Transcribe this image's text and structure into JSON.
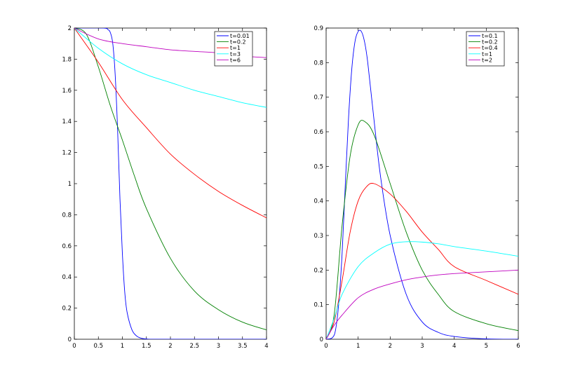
{
  "chart_data": [
    {
      "type": "line",
      "xlim": [
        0,
        4
      ],
      "ylim": [
        0,
        2
      ],
      "x_ticks": [
        "0",
        "0.5",
        "1",
        "1.5",
        "2",
        "2.5",
        "3",
        "3.5",
        "4"
      ],
      "y_ticks": [
        "0",
        "0.2",
        "0.4",
        "0.6",
        "0.8",
        "1",
        "1.2",
        "1.4",
        "1.6",
        "1.8",
        "2"
      ],
      "legend_position": "top-right",
      "series": [
        {
          "name": "t=0.01",
          "color": "#0000ff",
          "x": [
            0,
            0.6,
            0.7,
            0.75,
            0.8,
            0.85,
            0.9,
            0.95,
            1.0,
            1.05,
            1.1,
            1.2,
            1.3,
            1.4,
            1.5,
            1.6,
            2,
            3,
            4
          ],
          "y": [
            2.0,
            2.0,
            1.99,
            1.97,
            1.9,
            1.7,
            1.35,
            0.9,
            0.55,
            0.3,
            0.17,
            0.06,
            0.02,
            0.006,
            0.002,
            0.0,
            0.0,
            0.0,
            0.0
          ]
        },
        {
          "name": "t=0.2",
          "color": "#008000",
          "x": [
            0,
            0.25,
            0.5,
            0.75,
            1.0,
            1.25,
            1.5,
            2.0,
            2.5,
            3.0,
            3.5,
            4.0
          ],
          "y": [
            2.0,
            1.96,
            1.75,
            1.5,
            1.28,
            1.05,
            0.84,
            0.52,
            0.31,
            0.19,
            0.11,
            0.06
          ]
        },
        {
          "name": "t=1",
          "color": "#ff0000",
          "x": [
            0,
            0.5,
            1.0,
            1.5,
            2.0,
            2.5,
            3.0,
            3.5,
            4.0
          ],
          "y": [
            2.0,
            1.78,
            1.54,
            1.36,
            1.19,
            1.06,
            0.95,
            0.86,
            0.78
          ]
        },
        {
          "name": "t=3",
          "color": "#00ffff",
          "x": [
            0,
            0.5,
            1.0,
            1.5,
            2.0,
            2.5,
            3.0,
            3.5,
            4.0
          ],
          "y": [
            2.0,
            1.87,
            1.77,
            1.7,
            1.65,
            1.6,
            1.56,
            1.52,
            1.49
          ]
        },
        {
          "name": "t=6",
          "color": "#bf00bf",
          "x": [
            0,
            0.5,
            1.0,
            1.5,
            2.0,
            2.5,
            3.0,
            3.5,
            4.0
          ],
          "y": [
            2.0,
            1.93,
            1.9,
            1.88,
            1.86,
            1.85,
            1.84,
            1.82,
            1.81
          ]
        }
      ]
    },
    {
      "type": "line",
      "xlim": [
        0,
        6
      ],
      "ylim": [
        0,
        0.9
      ],
      "x_ticks": [
        "0",
        "1",
        "2",
        "3",
        "4",
        "5",
        "6"
      ],
      "y_ticks": [
        "0",
        "0.1",
        "0.2",
        "0.3",
        "0.4",
        "0.5",
        "0.6",
        "0.7",
        "0.8",
        "0.9"
      ],
      "legend_position": "top-right",
      "series": [
        {
          "name": "t=0.1",
          "color": "#0000ff",
          "x": [
            0,
            0.2,
            0.3,
            0.4,
            0.5,
            0.6,
            0.7,
            0.8,
            0.9,
            1.0,
            1.1,
            1.2,
            1.3,
            1.5,
            1.7,
            2.0,
            2.5,
            3.0,
            3.5,
            4.0,
            5.0,
            6.0
          ],
          "y": [
            0,
            0.005,
            0.03,
            0.11,
            0.25,
            0.45,
            0.64,
            0.78,
            0.86,
            0.89,
            0.89,
            0.86,
            0.8,
            0.63,
            0.47,
            0.3,
            0.13,
            0.05,
            0.02,
            0.008,
            0.001,
            0.0
          ]
        },
        {
          "name": "t=0.2",
          "color": "#008000",
          "x": [
            0,
            0.25,
            0.5,
            0.75,
            1.0,
            1.2,
            1.5,
            2.0,
            2.5,
            3.0,
            3.5,
            4.0,
            5.0,
            6.0
          ],
          "y": [
            0,
            0.07,
            0.33,
            0.53,
            0.62,
            0.63,
            0.59,
            0.45,
            0.31,
            0.2,
            0.13,
            0.08,
            0.045,
            0.025
          ]
        },
        {
          "name": "t=0.4",
          "color": "#ff0000",
          "x": [
            0,
            0.25,
            0.5,
            0.75,
            1.0,
            1.25,
            1.5,
            2.0,
            2.5,
            3.0,
            3.5,
            4.0,
            5.0,
            6.0
          ],
          "y": [
            0,
            0.05,
            0.17,
            0.31,
            0.4,
            0.44,
            0.45,
            0.42,
            0.37,
            0.31,
            0.26,
            0.21,
            0.17,
            0.13
          ]
        },
        {
          "name": "t=1",
          "color": "#00ffff",
          "x": [
            0,
            0.25,
            0.5,
            1.0,
            1.5,
            2.0,
            2.5,
            3.0,
            3.5,
            4.0,
            5.0,
            6.0
          ],
          "y": [
            0,
            0.06,
            0.13,
            0.21,
            0.25,
            0.275,
            0.282,
            0.281,
            0.276,
            0.268,
            0.255,
            0.24
          ]
        },
        {
          "name": "t=2",
          "color": "#bf00bf",
          "x": [
            0,
            0.25,
            0.5,
            1.0,
            1.5,
            2.0,
            2.5,
            3.0,
            3.5,
            4.0,
            5.0,
            6.0
          ],
          "y": [
            0,
            0.04,
            0.07,
            0.12,
            0.145,
            0.16,
            0.172,
            0.18,
            0.186,
            0.19,
            0.195,
            0.2
          ]
        }
      ]
    }
  ]
}
